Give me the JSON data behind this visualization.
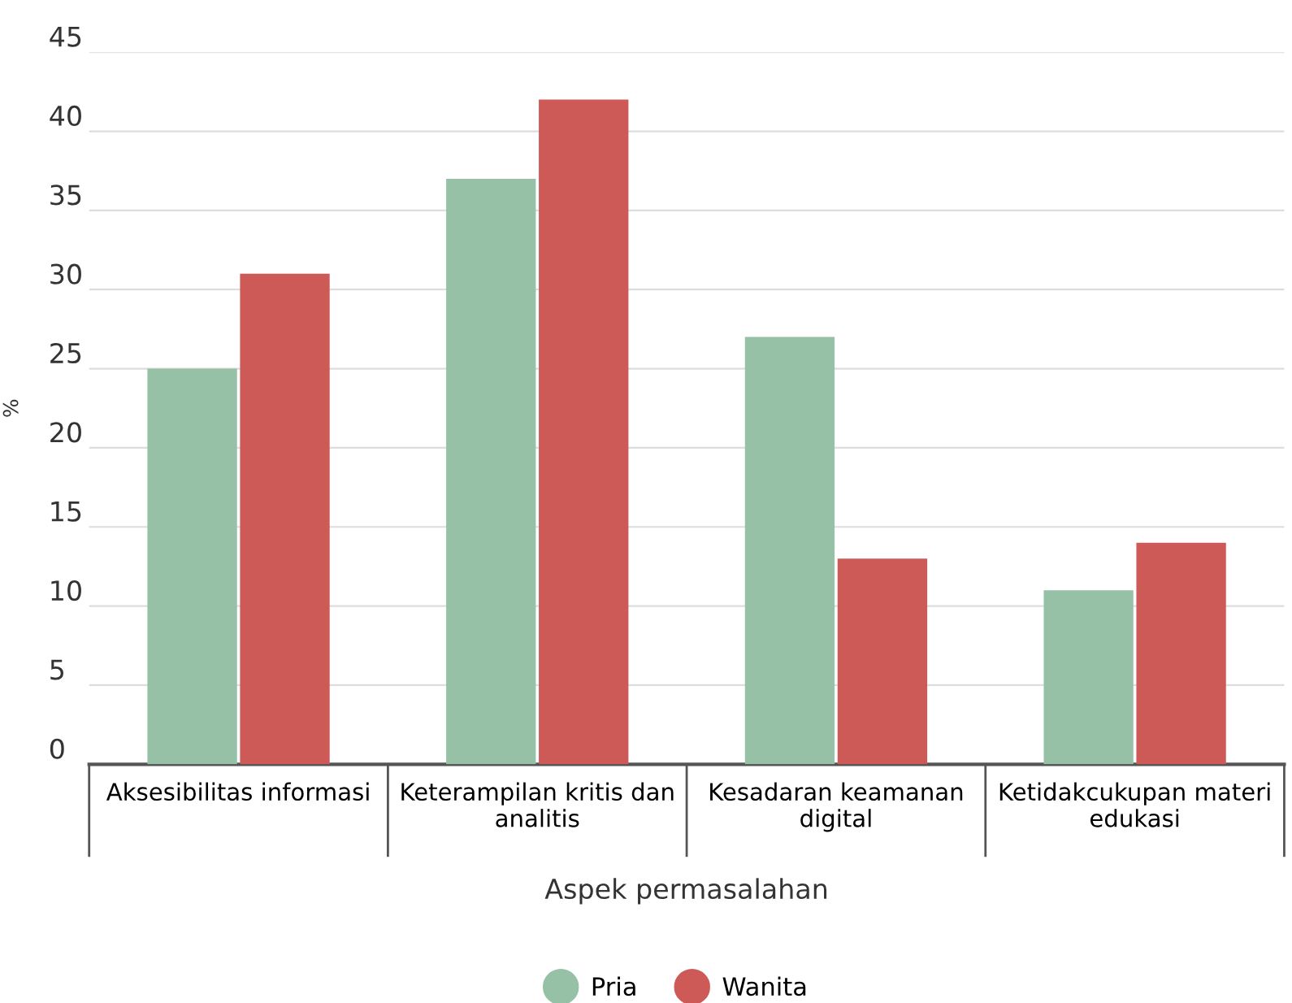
{
  "chart_data": {
    "type": "bar",
    "xlabel": "Aspek permasalahan",
    "ylabel": "%",
    "categories": [
      "Aksesibilitas informasi",
      "Keterampilan kritis dan\nanalitis",
      "Kesadaran keamanan\ndigital",
      "Ketidakcukupan materi\nedukasi"
    ],
    "series": [
      {
        "name": "Pria",
        "color": "#97c1a6",
        "values": [
          25,
          37,
          27,
          11
        ]
      },
      {
        "name": "Wanita",
        "color": "#cd5a57",
        "values": [
          31,
          42,
          13,
          14
        ]
      }
    ],
    "ylim": [
      0,
      45
    ],
    "yticks": [
      0,
      5,
      10,
      15,
      20,
      25,
      30,
      35,
      40,
      45
    ],
    "grid": "y",
    "legend": "bottom",
    "marker": "circle"
  }
}
